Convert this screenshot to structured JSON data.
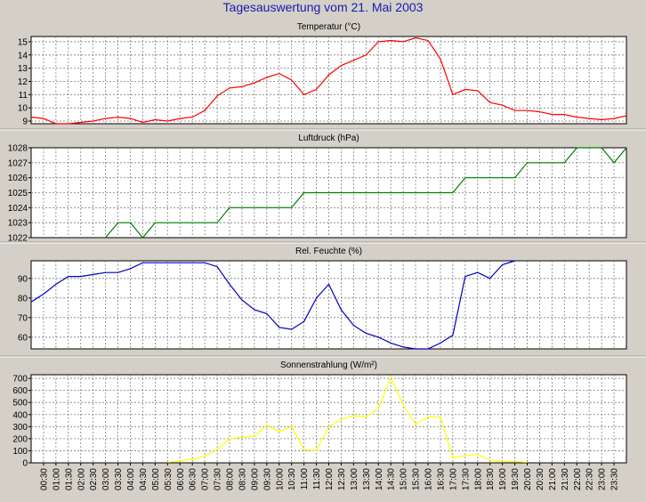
{
  "page": {
    "title": "Tagesauswertung vom 21. Mai 2003"
  },
  "colors": {
    "background": "#d4d0c8",
    "plot_background": "#ffffff",
    "grid": "#7f7f7f",
    "title_color": "#1a1ab0"
  },
  "chart_data": [
    {
      "type": "line",
      "title": "Temperatur (°C)",
      "color": "#ff0000",
      "ylim": [
        8.8,
        15.4
      ],
      "yticks": [
        9,
        10,
        11,
        12,
        13,
        14,
        15
      ],
      "grid": true,
      "x": [
        "00:00",
        "00:30",
        "01:00",
        "01:30",
        "02:00",
        "02:30",
        "03:00",
        "03:30",
        "04:00",
        "04:30",
        "05:00",
        "05:30",
        "06:00",
        "06:30",
        "07:00",
        "07:30",
        "08:00",
        "08:30",
        "09:00",
        "09:30",
        "10:00",
        "10:30",
        "11:00",
        "11:30",
        "12:00",
        "12:30",
        "13:00",
        "13:30",
        "14:00",
        "14:30",
        "15:00",
        "15:30",
        "16:00",
        "16:30",
        "17:00",
        "17:30",
        "18:00",
        "18:30",
        "19:00",
        "19:30",
        "20:00",
        "20:30",
        "21:00",
        "21:30",
        "22:00",
        "22:30",
        "23:00",
        "23:30",
        "24:00"
      ],
      "values": [
        9.3,
        9.2,
        8.8,
        8.7,
        8.9,
        9.0,
        9.2,
        9.3,
        9.2,
        8.9,
        9.1,
        9.0,
        9.2,
        9.3,
        9.8,
        10.9,
        11.5,
        11.6,
        11.9,
        12.3,
        12.6,
        12.1,
        11.0,
        11.4,
        12.5,
        13.2,
        13.6,
        14.0,
        15.0,
        15.1,
        15.0,
        15.3,
        15.1,
        13.7,
        11.0,
        11.4,
        11.3,
        10.4,
        10.2,
        9.8,
        9.8,
        9.7,
        9.5,
        9.5,
        9.3,
        9.2,
        9.1,
        9.2,
        9.4
      ]
    },
    {
      "type": "line",
      "title": "Luftdruck (hPa)",
      "color": "#008000",
      "ylim": [
        1022,
        1028
      ],
      "yticks": [
        1022,
        1023,
        1024,
        1025,
        1026,
        1027,
        1028
      ],
      "grid": true,
      "x": [
        "00:00",
        "00:30",
        "01:00",
        "01:30",
        "02:00",
        "02:30",
        "03:00",
        "03:30",
        "04:00",
        "04:30",
        "05:00",
        "05:30",
        "06:00",
        "06:30",
        "07:00",
        "07:30",
        "08:00",
        "08:30",
        "09:00",
        "09:30",
        "10:00",
        "10:30",
        "11:00",
        "11:30",
        "12:00",
        "12:30",
        "13:00",
        "13:30",
        "14:00",
        "14:30",
        "15:00",
        "15:30",
        "16:00",
        "16:30",
        "17:00",
        "17:30",
        "18:00",
        "18:30",
        "19:00",
        "19:30",
        "20:00",
        "20:30",
        "21:00",
        "21:30",
        "22:00",
        "22:30",
        "23:00",
        "23:30",
        "24:00"
      ],
      "values": [
        null,
        null,
        null,
        null,
        null,
        null,
        1022,
        1023,
        1023,
        1022,
        1023,
        1023,
        1023,
        1023,
        1023,
        1023,
        1024,
        1024,
        1024,
        1024,
        1024,
        1024,
        1025,
        1025,
        1025,
        1025,
        1025,
        1025,
        1025,
        1025,
        1025,
        1025,
        1025,
        1025,
        1025,
        1026,
        1026,
        1026,
        1026,
        1026,
        1027,
        1027,
        1027,
        1027,
        1028,
        1028,
        1028,
        1027,
        1028
      ]
    },
    {
      "type": "line",
      "title": "Rel. Feuchte (%)",
      "color": "#0000c0",
      "ylim": [
        54,
        99
      ],
      "yticks": [
        60,
        70,
        80,
        90
      ],
      "grid": true,
      "x": [
        "00:00",
        "00:30",
        "01:00",
        "01:30",
        "02:00",
        "02:30",
        "03:00",
        "03:30",
        "04:00",
        "04:30",
        "05:00",
        "05:30",
        "06:00",
        "06:30",
        "07:00",
        "07:30",
        "08:00",
        "08:30",
        "09:00",
        "09:30",
        "10:00",
        "10:30",
        "11:00",
        "11:30",
        "12:00",
        "12:30",
        "13:00",
        "13:30",
        "14:00",
        "14:30",
        "15:00",
        "15:30",
        "16:00",
        "16:30",
        "17:00",
        "17:30",
        "18:00",
        "18:30",
        "19:00",
        "19:30",
        "20:00",
        "20:30",
        "21:00",
        "21:30",
        "22:00",
        "22:30",
        "23:00",
        "23:30",
        "24:00"
      ],
      "values": [
        78,
        82,
        87,
        91,
        91,
        92,
        93,
        93,
        95,
        98,
        98,
        98,
        98,
        98,
        98,
        96,
        87,
        79,
        74,
        72,
        65,
        64,
        68,
        80,
        87,
        74,
        66,
        62,
        60,
        57,
        55,
        54,
        54,
        57,
        61,
        91,
        93,
        90,
        97,
        99,
        null,
        null,
        null,
        null,
        null,
        null,
        null,
        null,
        null
      ]
    },
    {
      "type": "line",
      "title": "Sonnenstrahlung (W/m²)",
      "color": "#ffff00",
      "ylim": [
        0,
        730
      ],
      "yticks": [
        0,
        100,
        200,
        300,
        400,
        500,
        600,
        700
      ],
      "grid": true,
      "x": [
        "00:00",
        "00:30",
        "01:00",
        "01:30",
        "02:00",
        "02:30",
        "03:00",
        "03:30",
        "04:00",
        "04:30",
        "05:00",
        "05:30",
        "06:00",
        "06:30",
        "07:00",
        "07:30",
        "08:00",
        "08:30",
        "09:00",
        "09:30",
        "10:00",
        "10:30",
        "11:00",
        "11:30",
        "12:00",
        "12:30",
        "13:00",
        "13:30",
        "14:00",
        "14:30",
        "15:00",
        "15:30",
        "16:00",
        "16:30",
        "17:00",
        "17:30",
        "18:00",
        "18:30",
        "19:00",
        "19:30",
        "20:00",
        "20:30",
        "21:00",
        "21:30",
        "22:00",
        "22:30",
        "23:00",
        "23:30",
        "24:00"
      ],
      "values": [
        null,
        null,
        null,
        null,
        null,
        null,
        null,
        null,
        null,
        null,
        null,
        5,
        15,
        30,
        55,
        110,
        200,
        210,
        225,
        310,
        260,
        300,
        110,
        100,
        300,
        360,
        390,
        380,
        450,
        710,
        480,
        320,
        380,
        380,
        40,
        60,
        70,
        20,
        10,
        10,
        5,
        null,
        null,
        null,
        null,
        null,
        null,
        null,
        null
      ]
    }
  ],
  "x_axis": {
    "tick_labels": [
      "00:30",
      "01:00",
      "01:30",
      "02:00",
      "02:30",
      "03:00",
      "03:30",
      "04:00",
      "04:30",
      "05:00",
      "05:30",
      "06:00",
      "06:30",
      "07:00",
      "07:30",
      "08:00",
      "08:30",
      "09:00",
      "09:30",
      "10:00",
      "10:30",
      "11:00",
      "11:30",
      "12:00",
      "12:30",
      "13:00",
      "13:30",
      "14:00",
      "14:30",
      "15:00",
      "15:30",
      "16:00",
      "16:30",
      "17:00",
      "17:30",
      "18:00",
      "18:30",
      "19:00",
      "19:30",
      "20:00",
      "20:30",
      "21:00",
      "21:30",
      "22:00",
      "22:30",
      "23:00",
      "23:30"
    ]
  }
}
